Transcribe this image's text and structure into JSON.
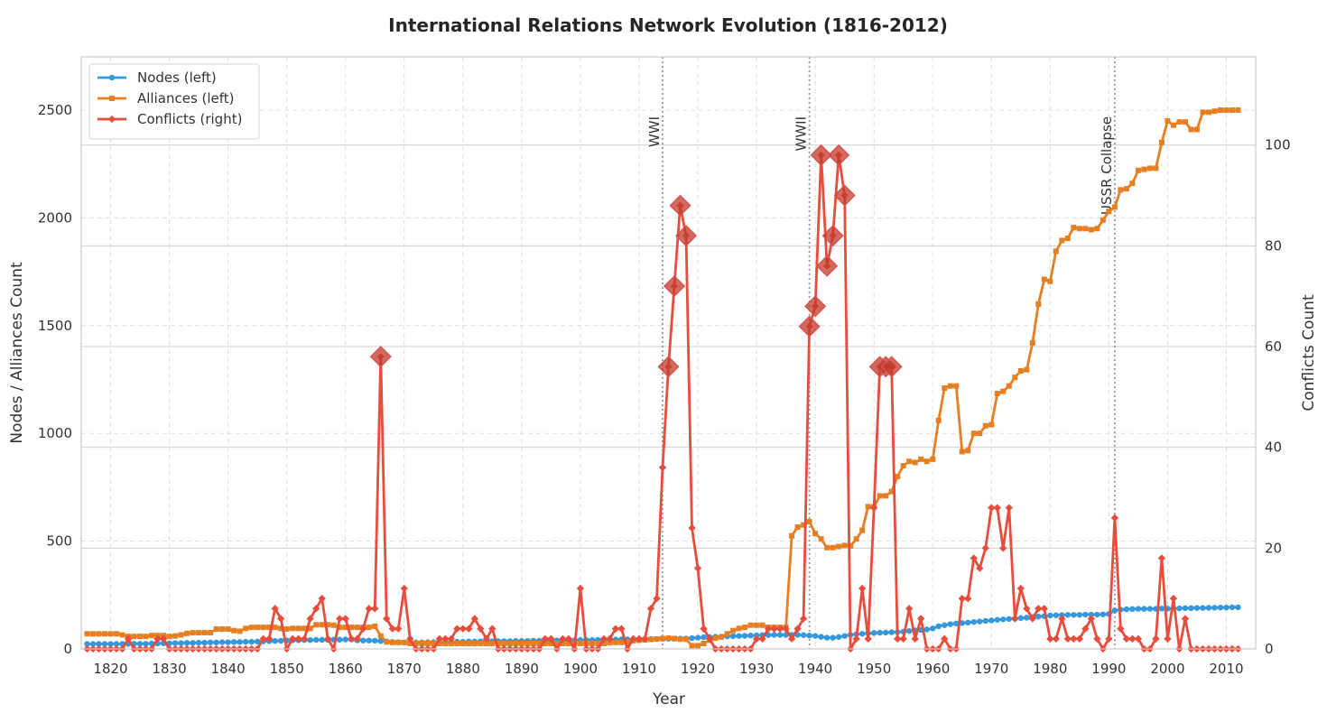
{
  "chart_data": {
    "type": "line",
    "title": "International Relations Network Evolution (1816-2012)",
    "xlabel": "Year",
    "ylabel_left": "Nodes / Alliances Count",
    "ylabel_right": "Conflicts Count",
    "x_start": 1816,
    "x_end": 2012,
    "xlim": [
      1815,
      2015
    ],
    "ylim_left": [
      0,
      2747
    ],
    "ylim_right": [
      0,
      117.5
    ],
    "xticks": [
      1820,
      1830,
      1840,
      1850,
      1860,
      1870,
      1880,
      1890,
      1900,
      1910,
      1920,
      1930,
      1940,
      1950,
      1960,
      1970,
      1980,
      1990,
      2000,
      2010
    ],
    "yticks_left": [
      0,
      500,
      1000,
      1500,
      2000,
      2500
    ],
    "yticks_right": [
      0,
      20,
      40,
      60,
      80,
      100
    ],
    "grid": true,
    "legend_position": "top-left",
    "highlight_threshold": 50,
    "colors": {
      "nodes": "#3498db",
      "alliances": "#e67e22",
      "conflicts": "#e74c3c",
      "highlight": "#c0392b",
      "event_line": "#999999"
    },
    "series": [
      {
        "name": "Nodes (left)",
        "key": "nodes",
        "axis": "left",
        "marker": "circle",
        "values": [
          23,
          23,
          23,
          23,
          23,
          23,
          23,
          23,
          24,
          24,
          24,
          25,
          25,
          26,
          26,
          27,
          27,
          28,
          28,
          29,
          29,
          30,
          30,
          31,
          31,
          32,
          32,
          33,
          33,
          34,
          35,
          36,
          37,
          38,
          39,
          40,
          40,
          41,
          41,
          42,
          42,
          42,
          43,
          43,
          44,
          44,
          40,
          39,
          39,
          38,
          36,
          34,
          32,
          31,
          30,
          30,
          30,
          30,
          31,
          31,
          31,
          32,
          32,
          33,
          33,
          34,
          34,
          35,
          35,
          35,
          36,
          36,
          36,
          37,
          37,
          37,
          38,
          38,
          38,
          39,
          39,
          39,
          40,
          40,
          41,
          41,
          41,
          42,
          42,
          43,
          43,
          44,
          44,
          44,
          45,
          45,
          46,
          46,
          47,
          47,
          47,
          48,
          48,
          50,
          52,
          54,
          55,
          56,
          57,
          58,
          59,
          60,
          61,
          62,
          63,
          64,
          64,
          65,
          65,
          65,
          65,
          65,
          64,
          62,
          60,
          56,
          52,
          52,
          55,
          60,
          65,
          68,
          70,
          72,
          74,
          75,
          76,
          77,
          78,
          80,
          83,
          86,
          88,
          90,
          95,
          105,
          110,
          115,
          118,
          120,
          122,
          125,
          127,
          130,
          132,
          135,
          137,
          139,
          141,
          143,
          145,
          148,
          150,
          152,
          155,
          156,
          157,
          158,
          158,
          158,
          159,
          159,
          159,
          160,
          162,
          178,
          182,
          184,
          185,
          186,
          186,
          186,
          186,
          187,
          187,
          188,
          188,
          189,
          189,
          190,
          190,
          191,
          191,
          192,
          192,
          193,
          193
        ]
      },
      {
        "name": "Alliances (left)",
        "key": "alliances",
        "axis": "left",
        "marker": "square",
        "values": [
          70,
          70,
          70,
          70,
          70,
          70,
          65,
          58,
          58,
          58,
          58,
          62,
          62,
          62,
          58,
          60,
          65,
          72,
          75,
          75,
          75,
          75,
          92,
          92,
          92,
          85,
          82,
          95,
          100,
          100,
          100,
          100,
          100,
          95,
          92,
          95,
          95,
          95,
          95,
          112,
          112,
          112,
          110,
          100,
          100,
          100,
          100,
          100,
          100,
          105,
          60,
          32,
          30,
          30,
          30,
          25,
          25,
          25,
          25,
          25,
          25,
          25,
          25,
          25,
          25,
          25,
          25,
          25,
          25,
          25,
          25,
          25,
          25,
          25,
          25,
          25,
          25,
          25,
          25,
          25,
          25,
          25,
          25,
          25,
          25,
          25,
          25,
          25,
          25,
          28,
          30,
          30,
          32,
          38,
          40,
          42,
          44,
          46,
          48,
          50,
          48,
          45,
          45,
          15,
          15,
          25,
          40,
          50,
          55,
          70,
          85,
          95,
          100,
          110,
          110,
          110,
          100,
          100,
          100,
          100,
          525,
          565,
          575,
          590,
          535,
          510,
          470,
          470,
          475,
          480,
          478,
          510,
          550,
          660,
          660,
          710,
          710,
          730,
          800,
          850,
          870,
          865,
          880,
          870,
          880,
          1060,
          1210,
          1220,
          1220,
          915,
          920,
          1000,
          1000,
          1035,
          1040,
          1185,
          1195,
          1220,
          1260,
          1290,
          1295,
          1420,
          1600,
          1715,
          1705,
          1845,
          1895,
          1905,
          1955,
          1950,
          1950,
          1945,
          1950,
          1990,
          2030,
          2050,
          2130,
          2135,
          2160,
          2220,
          2225,
          2230,
          2230,
          2350,
          2450,
          2430,
          2445,
          2445,
          2410,
          2410,
          2490,
          2490,
          2495,
          2500,
          2500,
          2500,
          2500
        ]
      },
      {
        "name": "Conflicts (right)",
        "key": "conflicts",
        "axis": "right",
        "marker": "diamond",
        "values": [
          0,
          0,
          0,
          0,
          0,
          0,
          0,
          2,
          0,
          0,
          0,
          0,
          2,
          2,
          0,
          0,
          0,
          0,
          0,
          0,
          0,
          0,
          0,
          0,
          0,
          0,
          0,
          0,
          0,
          0,
          2,
          2,
          8,
          6,
          0,
          2,
          2,
          2,
          6,
          8,
          10,
          2,
          0,
          6,
          6,
          2,
          2,
          4,
          8,
          8,
          58,
          6,
          4,
          4,
          12,
          2,
          0,
          0,
          0,
          0,
          2,
          2,
          2,
          4,
          4,
          4,
          6,
          4,
          2,
          4,
          0,
          0,
          0,
          0,
          0,
          0,
          0,
          0,
          2,
          2,
          0,
          2,
          2,
          0,
          12,
          0,
          0,
          0,
          2,
          2,
          4,
          4,
          0,
          2,
          2,
          2,
          8,
          10,
          36,
          56,
          72,
          88,
          82,
          24,
          16,
          4,
          2,
          0,
          0,
          0,
          0,
          0,
          0,
          0,
          2,
          2,
          4,
          4,
          4,
          4,
          2,
          4,
          6,
          64,
          68,
          98,
          76,
          82,
          98,
          90,
          0,
          2,
          12,
          2,
          28,
          56,
          56,
          56,
          2,
          2,
          8,
          2,
          6,
          0,
          0,
          0,
          2,
          0,
          0,
          10,
          10,
          18,
          16,
          20,
          28,
          28,
          20,
          28,
          6,
          12,
          8,
          6,
          8,
          8,
          2,
          2,
          6,
          2,
          2,
          2,
          4,
          6,
          2,
          0,
          2,
          26,
          4,
          2,
          2,
          2,
          0,
          0,
          2,
          18,
          2,
          10,
          0,
          6,
          0,
          0,
          0,
          0,
          0,
          0,
          0,
          0,
          0
        ]
      }
    ],
    "annotations": [
      {
        "year": 1914,
        "label": "WWI"
      },
      {
        "year": 1939,
        "label": "WWII"
      },
      {
        "year": 1991,
        "label": "USSR Collapse"
      }
    ]
  }
}
